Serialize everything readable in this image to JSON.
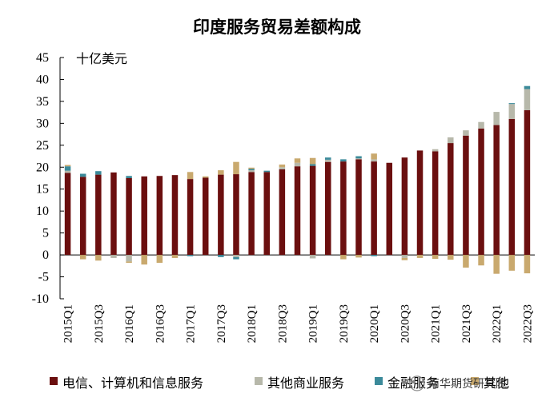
{
  "chart_data": {
    "type": "bar",
    "stacked": true,
    "title": "印度服务贸易差额构成",
    "unit_label": "十亿美元",
    "ylim": [
      -10,
      45
    ],
    "yticks": [
      -10,
      -5,
      0,
      5,
      10,
      15,
      20,
      25,
      30,
      35,
      40,
      45
    ],
    "categories": [
      "2015Q1",
      "2015Q2",
      "2015Q3",
      "2015Q4",
      "2016Q1",
      "2016Q2",
      "2016Q3",
      "2016Q4",
      "2017Q1",
      "2017Q2",
      "2017Q3",
      "2017Q4",
      "2018Q1",
      "2018Q2",
      "2018Q3",
      "2018Q4",
      "2019Q1",
      "2019Q2",
      "2019Q3",
      "2019Q4",
      "2020Q1",
      "2020Q2",
      "2020Q3",
      "2020Q4",
      "2021Q1",
      "2021Q2",
      "2021Q3",
      "2021Q4",
      "2022Q1",
      "2022Q2",
      "2022Q3"
    ],
    "x_tick_labels": [
      "2015Q1",
      "",
      "2015Q3",
      "",
      "2016Q1",
      "",
      "2016Q3",
      "",
      "2017Q1",
      "",
      "2017Q3",
      "",
      "2018Q1",
      "",
      "2018Q3",
      "",
      "2019Q1",
      "",
      "2019Q3",
      "",
      "2020Q1",
      "",
      "2020Q3",
      "",
      "2021Q1",
      "",
      "2021Q3",
      "",
      "2022Q1",
      "",
      "2022Q3"
    ],
    "series": [
      {
        "name": "电信、计算机和信息服务",
        "color": "#6b0f0f",
        "values": [
          18.7,
          17.8,
          18.3,
          18.8,
          17.5,
          17.9,
          18.0,
          18.2,
          17.3,
          17.6,
          18.3,
          18.4,
          18.9,
          18.9,
          19.5,
          20.2,
          20.3,
          21.2,
          21.3,
          21.8,
          21.3,
          21.0,
          22.2,
          23.8,
          23.6,
          25.5,
          27.2,
          28.8,
          29.6,
          31.0,
          33.0
        ]
      },
      {
        "name": "其他商业服务",
        "color": "#b7b8aa",
        "values": [
          0.5,
          0,
          0,
          -0.7,
          -1.5,
          0,
          0,
          0,
          0,
          0,
          0,
          -0.5,
          0.4,
          0,
          0.5,
          0.8,
          -0.8,
          0.5,
          0,
          0.2,
          0.5,
          0,
          -0.7,
          0,
          0.5,
          1.3,
          1.2,
          1.5,
          3.0,
          3.4,
          4.8
        ]
      },
      {
        "name": "金融服务",
        "color": "#3b8a9a",
        "values": [
          1.0,
          0.7,
          0.8,
          0,
          0.5,
          0,
          0,
          0,
          -0.3,
          0,
          -0.5,
          -0.5,
          0.3,
          0.3,
          0,
          0,
          0.4,
          0.5,
          0.5,
          0.5,
          -0.3,
          0,
          0,
          0,
          0,
          0,
          0,
          0,
          0,
          0.2,
          0.7
        ]
      },
      {
        "name": "其他",
        "color": "#c9a96e",
        "values": [
          0.3,
          -1.0,
          -1.3,
          0,
          -0.3,
          -2.2,
          -1.8,
          -0.7,
          1.6,
          0.3,
          1.0,
          2.8,
          0.3,
          0,
          0.6,
          1.0,
          1.4,
          0,
          -1.0,
          -0.6,
          1.3,
          0,
          -0.5,
          -0.7,
          -0.9,
          -1.1,
          -2.9,
          -2.4,
          -4.3,
          -3.6,
          -4.2
        ]
      }
    ]
  },
  "watermark": "南华期货研究院"
}
